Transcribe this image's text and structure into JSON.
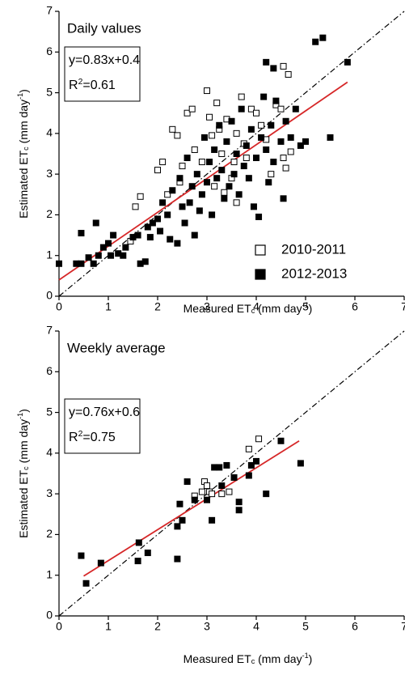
{
  "chart_data": [
    {
      "type": "scatter",
      "title": "Daily values",
      "annotations": [
        [
          {
            "text": "y=0.83x+0.4"
          }
        ],
        [
          {
            "text": "R"
          },
          {
            "text": "2",
            "shift": "sup"
          },
          {
            "text": "=0.61"
          }
        ]
      ],
      "xlabel": [
        {
          "text": "Measured ET"
        },
        {
          "text": "c",
          "shift": "sub"
        },
        {
          "text": " (mm day"
        },
        {
          "text": "-1",
          "shift": "sup"
        },
        {
          "text": ")"
        }
      ],
      "ylabel": [
        {
          "text": "Estimated ET"
        },
        {
          "text": "c",
          "shift": "sub"
        },
        {
          "text": " (mm day"
        },
        {
          "text": "-1",
          "shift": "sup"
        },
        {
          "text": ")"
        }
      ],
      "xlim": [
        0,
        7
      ],
      "ylim": [
        0,
        7
      ],
      "xticks": [
        0,
        1,
        2,
        3,
        4,
        5,
        6,
        7
      ],
      "yticks": [
        0,
        1,
        2,
        3,
        4,
        5,
        6,
        7
      ],
      "legend": "lower right",
      "series": [
        {
          "name": "2010-2011",
          "color": "#000000",
          "marker": "open",
          "x": [
            1.45,
            1.55,
            1.65,
            2.1,
            2.3,
            2.4,
            2.5,
            2.6,
            2.7,
            2.75,
            2.9,
            3.0,
            3.05,
            3.1,
            3.2,
            3.25,
            3.3,
            3.4,
            3.5,
            3.55,
            3.6,
            3.7,
            3.75,
            3.8,
            3.9,
            4.0,
            4.1,
            4.2,
            4.3,
            4.4,
            4.5,
            4.55,
            4.6,
            4.65,
            4.7,
            4.55,
            2.2,
            2.45,
            3.15,
            3.35,
            3.6,
            2.0
          ],
          "values": [
            1.35,
            2.2,
            2.45,
            3.3,
            4.1,
            3.95,
            3.2,
            4.5,
            4.6,
            3.6,
            3.3,
            5.05,
            4.4,
            3.95,
            4.75,
            4.1,
            3.5,
            4.35,
            2.9,
            3.3,
            4.0,
            4.9,
            3.75,
            3.4,
            4.6,
            4.5,
            4.2,
            3.85,
            3.0,
            4.7,
            4.6,
            5.65,
            3.15,
            5.45,
            3.55,
            3.4,
            2.5,
            2.8,
            2.7,
            2.55,
            2.3,
            3.1
          ]
        },
        {
          "name": "2012-2013",
          "color": "#000000",
          "marker": "filled",
          "x": [
            0,
            0.35,
            0.45,
            0.45,
            0.6,
            0.7,
            0.75,
            0.8,
            0.9,
            1.0,
            1.05,
            1.1,
            1.2,
            1.3,
            1.35,
            1.5,
            1.6,
            1.65,
            1.75,
            1.8,
            1.85,
            1.9,
            2.0,
            2.05,
            2.1,
            2.2,
            2.25,
            2.3,
            2.4,
            2.45,
            2.5,
            2.55,
            2.6,
            2.65,
            2.7,
            2.75,
            2.8,
            2.85,
            2.9,
            2.95,
            3.0,
            3.05,
            3.1,
            3.15,
            3.2,
            3.25,
            3.3,
            3.35,
            3.4,
            3.45,
            3.5,
            3.55,
            3.6,
            3.65,
            3.7,
            3.75,
            3.8,
            3.85,
            3.9,
            3.95,
            4.0,
            4.05,
            4.1,
            4.15,
            4.2,
            4.25,
            4.3,
            4.35,
            4.4,
            4.5,
            4.55,
            4.6,
            4.7,
            4.8,
            4.9,
            5.0,
            5.5,
            4.2,
            4.35,
            5.2,
            5.35,
            5.85
          ],
          "values": [
            0.8,
            0.8,
            0.8,
            1.55,
            0.95,
            0.8,
            1.8,
            1.0,
            1.2,
            1.3,
            1.0,
            1.5,
            1.05,
            1.0,
            1.2,
            1.45,
            1.5,
            0.8,
            0.85,
            1.7,
            1.45,
            1.8,
            1.9,
            1.6,
            2.3,
            2.0,
            1.4,
            2.6,
            1.3,
            2.9,
            2.2,
            1.8,
            3.4,
            2.3,
            2.7,
            1.5,
            3.0,
            2.1,
            2.5,
            3.9,
            2.8,
            3.3,
            2.0,
            3.6,
            2.9,
            4.2,
            3.1,
            2.4,
            3.8,
            2.7,
            4.3,
            3.0,
            3.5,
            2.5,
            4.6,
            3.2,
            3.7,
            2.9,
            4.1,
            2.2,
            3.4,
            1.95,
            3.9,
            4.9,
            3.6,
            2.8,
            4.2,
            3.3,
            4.8,
            3.8,
            2.4,
            4.3,
            3.9,
            4.6,
            3.7,
            3.8,
            3.9,
            5.75,
            5.6,
            6.25,
            6.35,
            5.75
          ]
        }
      ],
      "fit_line": {
        "color": "#d62728",
        "x": [
          0,
          5.85
        ],
        "values": [
          0.4,
          5.26
        ]
      },
      "one_to_one": {
        "color": "#000000",
        "x": [
          0,
          7
        ],
        "values": [
          0,
          7
        ]
      }
    },
    {
      "type": "scatter",
      "title": "Weekly average",
      "annotations": [
        [
          {
            "text": "y=0.76x+0.6"
          }
        ],
        [
          {
            "text": "R"
          },
          {
            "text": "2",
            "shift": "sup"
          },
          {
            "text": "=0.75"
          }
        ]
      ],
      "xlabel": [
        {
          "text": "Measured ET"
        },
        {
          "text": "c",
          "shift": "sub"
        },
        {
          "text": " (mm day"
        },
        {
          "text": "-1",
          "shift": "sup"
        },
        {
          "text": ")"
        }
      ],
      "ylabel": [
        {
          "text": "Estimated ET"
        },
        {
          "text": "c",
          "shift": "sub"
        },
        {
          "text": " (mm day"
        },
        {
          "text": "-1",
          "shift": "sup"
        },
        {
          "text": ")"
        }
      ],
      "xlim": [
        0,
        7
      ],
      "ylim": [
        0,
        7
      ],
      "xticks": [
        0,
        1,
        2,
        3,
        4,
        5,
        6,
        7
      ],
      "yticks": [
        0,
        1,
        2,
        3,
        4,
        5,
        6,
        7
      ],
      "series": [
        {
          "name": "2010-2011",
          "color": "#000000",
          "marker": "open",
          "x": [
            2.75,
            2.9,
            2.95,
            3.0,
            3.05,
            3.3,
            3.45,
            3.85,
            4.05,
            3.1
          ],
          "values": [
            2.95,
            3.05,
            3.3,
            3.2,
            3.05,
            3.0,
            3.05,
            4.1,
            4.35,
            3.0
          ]
        },
        {
          "name": "2012-2013",
          "color": "#000000",
          "marker": "filled",
          "x": [
            0.45,
            0.55,
            0.85,
            1.6,
            1.62,
            1.8,
            2.4,
            2.4,
            2.45,
            2.5,
            2.6,
            2.75,
            3.0,
            3.1,
            3.15,
            3.3,
            3.4,
            3.55,
            3.65,
            3.65,
            3.85,
            3.9,
            4.0,
            4.2,
            4.5,
            4.9,
            3.25
          ],
          "values": [
            1.48,
            0.8,
            1.3,
            1.35,
            1.8,
            1.55,
            1.4,
            2.2,
            2.75,
            2.35,
            3.3,
            2.85,
            2.85,
            2.35,
            3.65,
            3.2,
            3.7,
            3.4,
            2.6,
            2.8,
            3.45,
            3.7,
            3.8,
            3.0,
            4.3,
            3.75,
            3.65
          ]
        }
      ],
      "fit_line": {
        "color": "#d62728",
        "x": [
          0.5,
          4.87
        ],
        "values": [
          0.98,
          4.3
        ]
      },
      "one_to_one": {
        "color": "#000000",
        "x": [
          0,
          7
        ],
        "values": [
          0,
          7
        ]
      }
    }
  ]
}
